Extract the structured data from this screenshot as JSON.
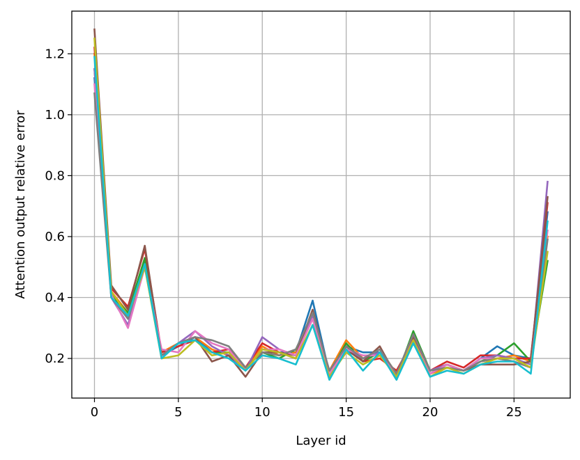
{
  "chart_data": {
    "type": "line",
    "title": "",
    "xlabel": "Layer id",
    "ylabel": "Attention output relative error",
    "xlim": [
      -1.35,
      28.35
    ],
    "ylim": [
      0.07,
      1.34
    ],
    "x_ticks": [
      0,
      5,
      10,
      15,
      20,
      25
    ],
    "x_tick_labels": [
      "0",
      "5",
      "10",
      "15",
      "20",
      "25"
    ],
    "y_ticks": [
      0.2,
      0.4,
      0.6,
      0.8,
      1.0,
      1.2
    ],
    "y_tick_labels": [
      "0.2",
      "0.4",
      "0.6",
      "0.8",
      "1.0",
      "1.2"
    ],
    "grid": true,
    "legend": "none",
    "x": [
      0,
      1,
      2,
      3,
      4,
      5,
      6,
      7,
      8,
      9,
      10,
      11,
      12,
      13,
      14,
      15,
      16,
      17,
      18,
      19,
      20,
      21,
      22,
      23,
      24,
      25,
      26,
      27
    ],
    "series": [
      {
        "color": "#1f77b4",
        "values": [
          1.12,
          0.41,
          0.33,
          0.52,
          0.21,
          0.24,
          0.27,
          0.22,
          0.22,
          0.16,
          0.23,
          0.22,
          0.22,
          0.39,
          0.15,
          0.24,
          0.22,
          0.22,
          0.13,
          0.27,
          0.15,
          0.18,
          0.16,
          0.2,
          0.24,
          0.21,
          0.2,
          0.68
        ]
      },
      {
        "color": "#ff7f0e",
        "values": [
          1.2,
          0.42,
          0.35,
          0.51,
          0.22,
          0.25,
          0.27,
          0.23,
          0.21,
          0.17,
          0.24,
          0.21,
          0.22,
          0.33,
          0.16,
          0.26,
          0.2,
          0.23,
          0.15,
          0.26,
          0.15,
          0.17,
          0.16,
          0.19,
          0.2,
          0.21,
          0.19,
          0.6
        ]
      },
      {
        "color": "#2ca02c",
        "values": [
          1.15,
          0.41,
          0.35,
          0.53,
          0.21,
          0.25,
          0.26,
          0.22,
          0.22,
          0.17,
          0.22,
          0.2,
          0.23,
          0.34,
          0.15,
          0.25,
          0.19,
          0.22,
          0.14,
          0.29,
          0.16,
          0.18,
          0.16,
          0.19,
          0.21,
          0.25,
          0.19,
          0.52
        ]
      },
      {
        "color": "#d62728",
        "values": [
          1.22,
          0.43,
          0.37,
          0.56,
          0.22,
          0.24,
          0.26,
          0.22,
          0.23,
          0.17,
          0.25,
          0.22,
          0.2,
          0.35,
          0.15,
          0.24,
          0.19,
          0.2,
          0.16,
          0.26,
          0.16,
          0.19,
          0.17,
          0.21,
          0.21,
          0.2,
          0.2,
          0.71
        ]
      },
      {
        "color": "#9467bd",
        "values": [
          1.15,
          0.4,
          0.31,
          0.5,
          0.21,
          0.25,
          0.29,
          0.24,
          0.21,
          0.16,
          0.27,
          0.23,
          0.21,
          0.34,
          0.16,
          0.23,
          0.2,
          0.22,
          0.14,
          0.27,
          0.16,
          0.18,
          0.16,
          0.2,
          0.21,
          0.2,
          0.18,
          0.78
        ]
      },
      {
        "color": "#8c564b",
        "values": [
          1.28,
          0.44,
          0.36,
          0.57,
          0.21,
          0.25,
          0.27,
          0.19,
          0.21,
          0.14,
          0.22,
          0.22,
          0.21,
          0.36,
          0.15,
          0.23,
          0.19,
          0.24,
          0.14,
          0.27,
          0.15,
          0.18,
          0.16,
          0.18,
          0.18,
          0.18,
          0.19,
          0.73
        ]
      },
      {
        "color": "#e377c2",
        "values": [
          1.1,
          0.41,
          0.3,
          0.5,
          0.23,
          0.22,
          0.29,
          0.25,
          0.23,
          0.16,
          0.23,
          0.23,
          0.21,
          0.33,
          0.15,
          0.23,
          0.21,
          0.21,
          0.15,
          0.26,
          0.15,
          0.18,
          0.16,
          0.2,
          0.2,
          0.19,
          0.17,
          0.62
        ]
      },
      {
        "color": "#7f7f7f",
        "values": [
          1.07,
          0.4,
          0.33,
          0.51,
          0.21,
          0.25,
          0.27,
          0.26,
          0.24,
          0.17,
          0.22,
          0.21,
          0.23,
          0.35,
          0.16,
          0.24,
          0.2,
          0.23,
          0.15,
          0.28,
          0.16,
          0.17,
          0.16,
          0.19,
          0.2,
          0.19,
          0.17,
          0.59
        ]
      },
      {
        "color": "#bcbd22",
        "values": [
          1.25,
          0.42,
          0.34,
          0.5,
          0.2,
          0.21,
          0.26,
          0.21,
          0.22,
          0.16,
          0.23,
          0.22,
          0.2,
          0.31,
          0.14,
          0.22,
          0.18,
          0.21,
          0.14,
          0.26,
          0.14,
          0.17,
          0.15,
          0.18,
          0.2,
          0.2,
          0.17,
          0.55
        ]
      },
      {
        "color": "#17becf",
        "values": [
          1.19,
          0.4,
          0.34,
          0.51,
          0.2,
          0.25,
          0.26,
          0.22,
          0.2,
          0.16,
          0.21,
          0.2,
          0.18,
          0.31,
          0.13,
          0.23,
          0.16,
          0.22,
          0.13,
          0.25,
          0.14,
          0.16,
          0.15,
          0.18,
          0.19,
          0.19,
          0.15,
          0.65
        ]
      }
    ]
  }
}
